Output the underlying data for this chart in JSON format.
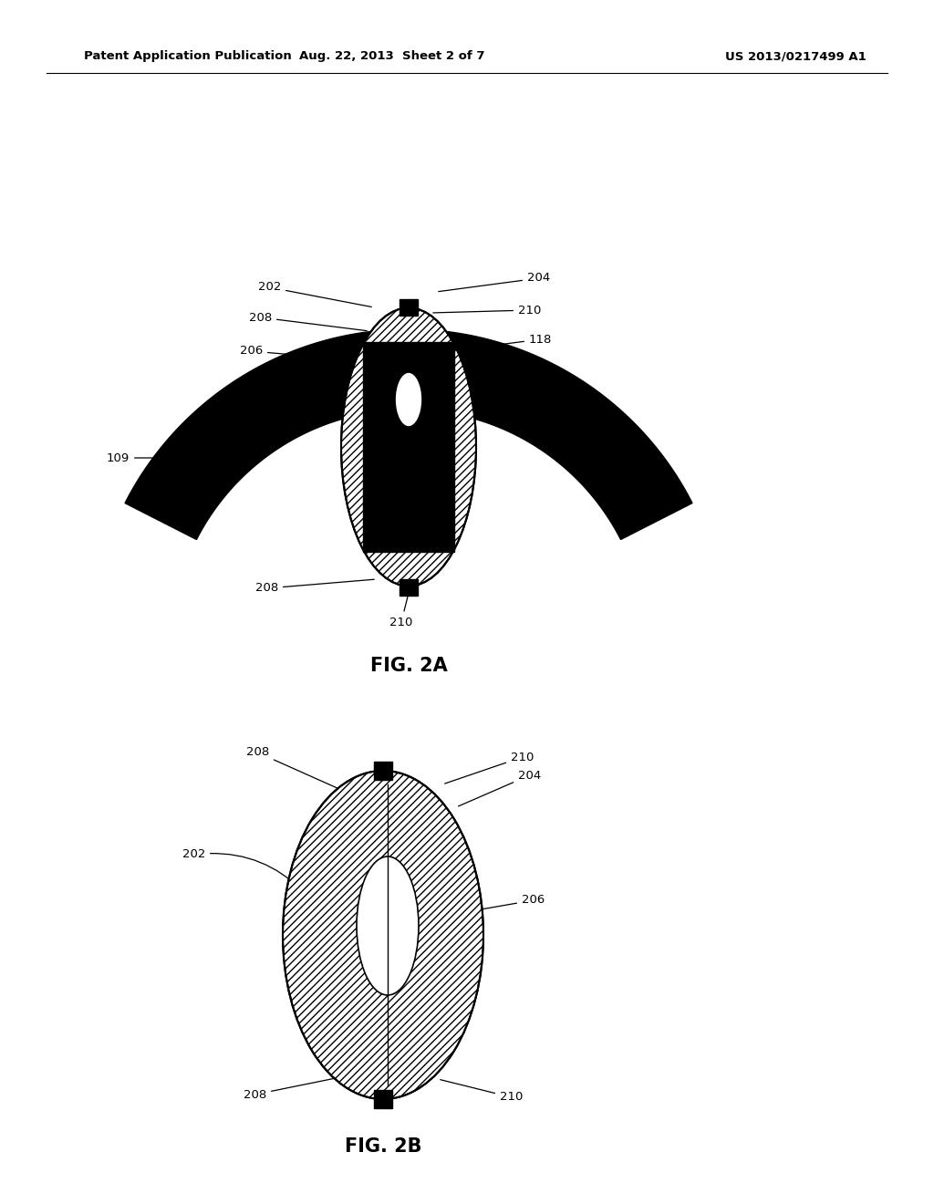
{
  "header_left": "Patent Application Publication",
  "header_mid": "Aug. 22, 2013  Sheet 2 of 7",
  "header_right": "US 2013/0217499 A1",
  "fig2a_label": "FIG. 2A",
  "fig2b_label": "FIG. 2B",
  "bg_color": "#ffffff"
}
